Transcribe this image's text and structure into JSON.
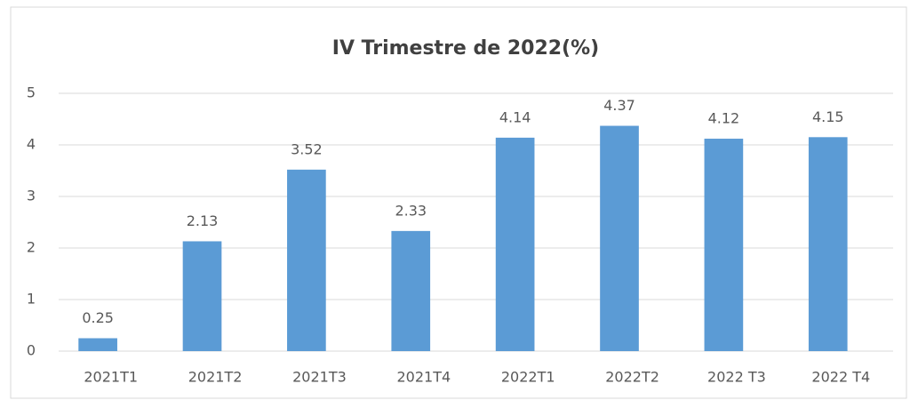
{
  "chart_data": {
    "type": "bar",
    "title": "IV Trimestre de 2022(%)",
    "categories": [
      "2021T1",
      "2021T2",
      "2021T3",
      "2021T4",
      "2022T1",
      "2022T2",
      "2022 T3",
      "2022 T4"
    ],
    "values": [
      0.25,
      2.13,
      3.52,
      2.33,
      4.14,
      4.37,
      4.12,
      4.15
    ],
    "color": "#5b9bd5",
    "ylim": [
      0,
      5
    ],
    "yticks": [
      0,
      1,
      2,
      3,
      4,
      5
    ],
    "grid": true
  }
}
